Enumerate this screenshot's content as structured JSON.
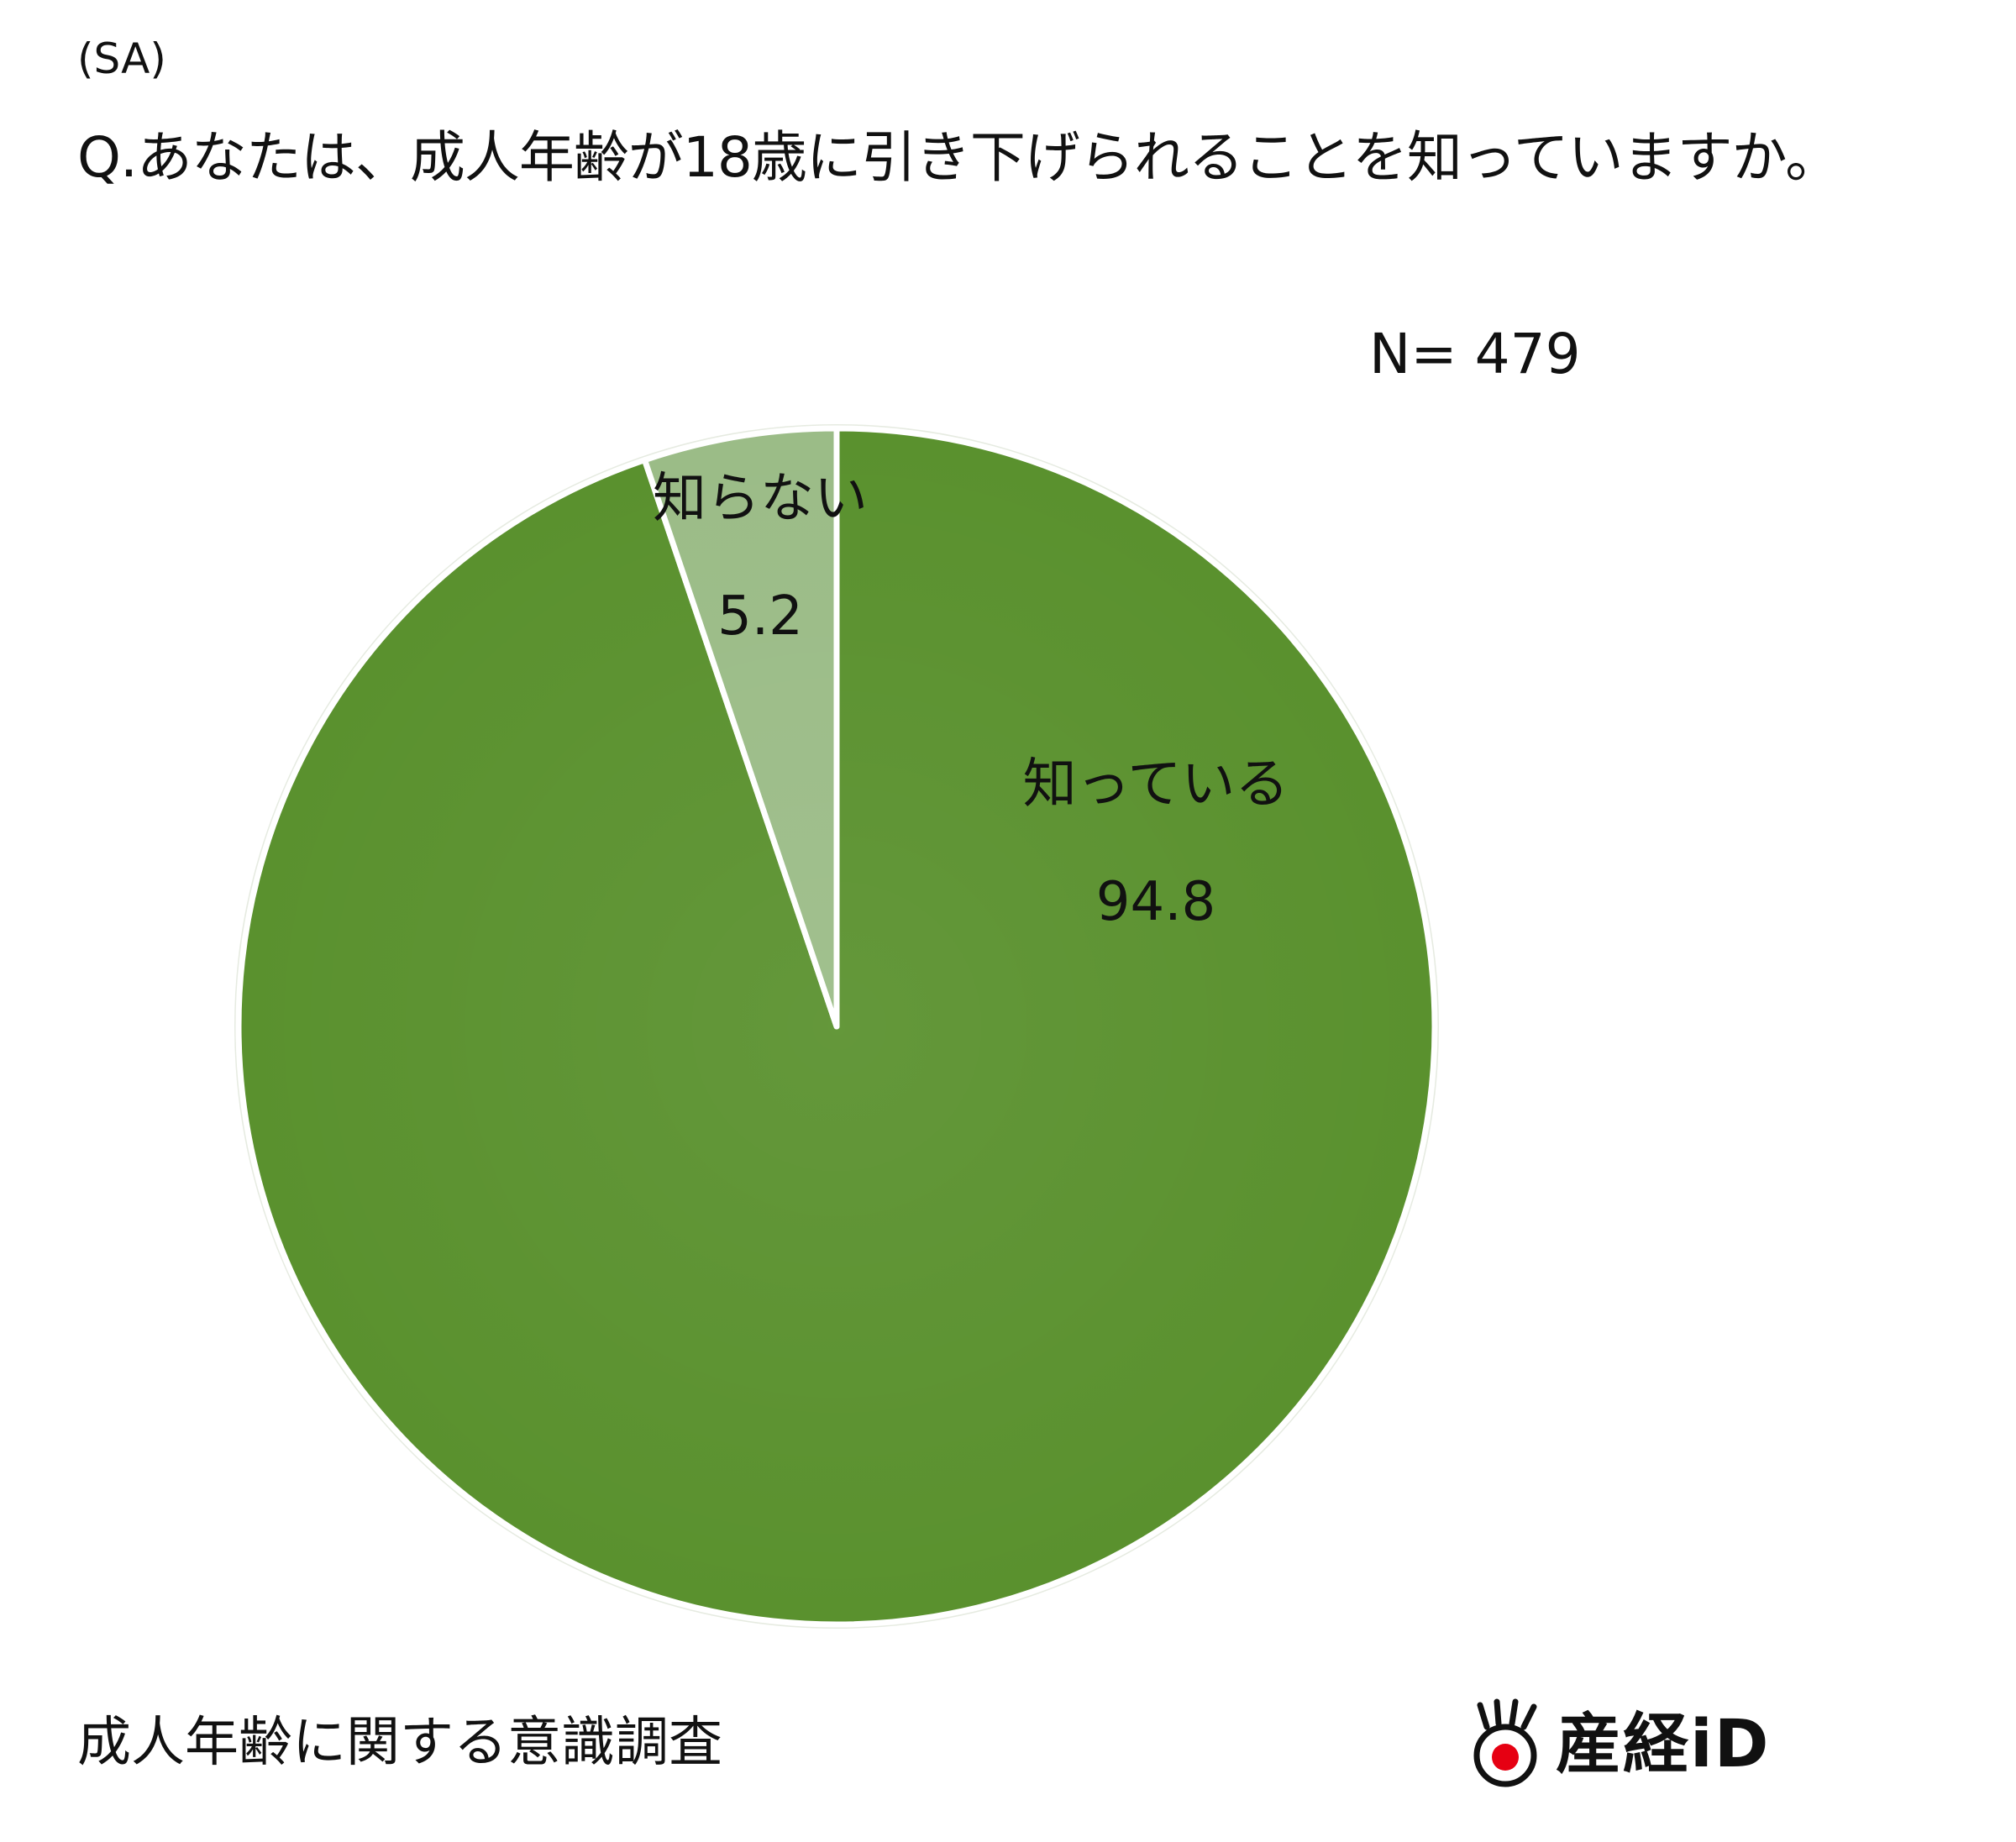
{
  "header": {
    "sa_label": "(SA)",
    "question": "Q.あなたは、成人年齢が18歳に引き下げられることを知っていますか。"
  },
  "sample_size": "N= 479",
  "chart_data": {
    "type": "pie",
    "title": "Q.あなたは、成人年齢が18歳に引き下げられることを知っていますか。",
    "categories": [
      "知っている",
      "知らない"
    ],
    "values": [
      94.8,
      5.2
    ],
    "value_labels": [
      "94.8",
      "5.2"
    ],
    "colors": [
      "#5a912e",
      "#9bbc87"
    ],
    "start": "12 o'clock",
    "direction": "clockwise",
    "legend": "none",
    "data_labels": "inside"
  },
  "footer": {
    "survey_title": "成人年齢に関する意識調査",
    "logo_text": "産経iD",
    "logo_mark": "sankei-sun-icon",
    "logo_accent_color": "#e60012"
  }
}
